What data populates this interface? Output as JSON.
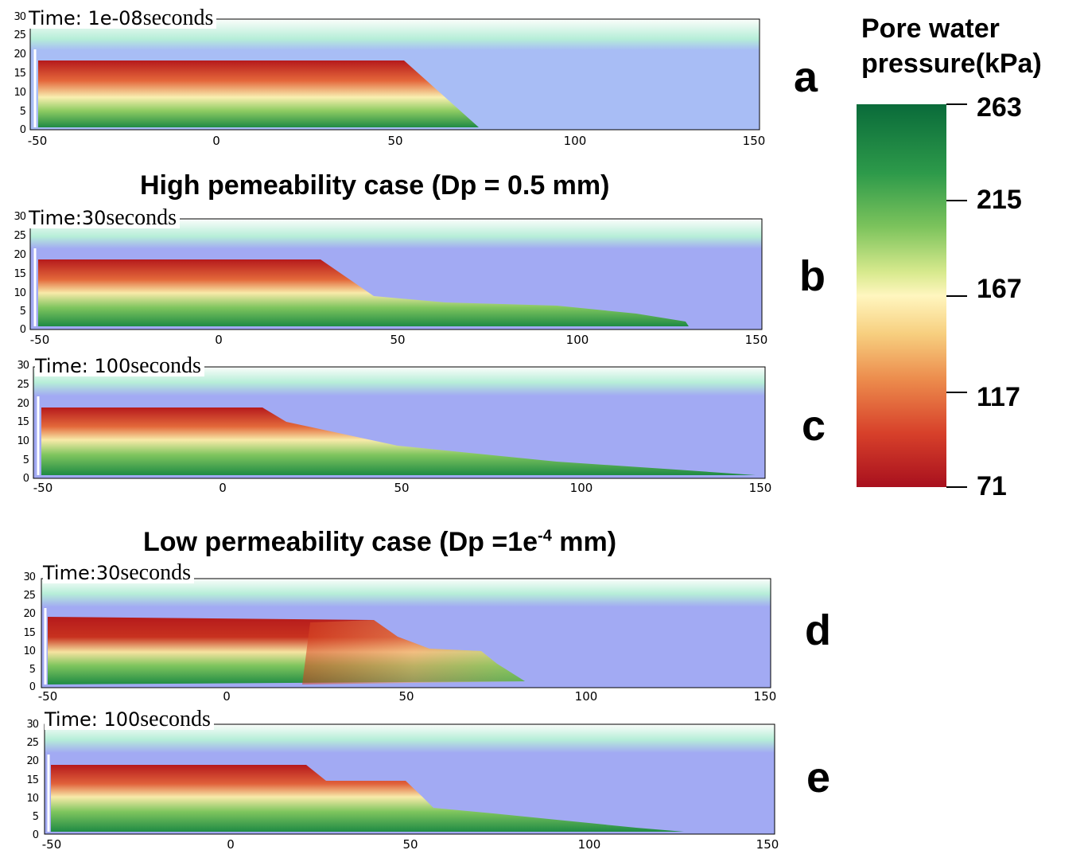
{
  "colorbar": {
    "title_line1": "Pore water",
    "title_line2": "pressure(kPa)",
    "ticks": [
      "263",
      "215",
      "167",
      "117",
      "71"
    ],
    "gradient_colors": [
      "#0a6b3a",
      "#7cc35c",
      "#fff6bf",
      "#ec8b4c",
      "#a8101e"
    ]
  },
  "case_titles": {
    "high": "High pemeability case (Dp = 0.5 mm)",
    "low_prefix": "Low permeability case (Dp =1e",
    "low_sup": "-4",
    "low_suffix": " mm)"
  },
  "axes": {
    "y_ticks": [
      "30",
      "25",
      "20",
      "15",
      "10",
      "5",
      "0"
    ],
    "x_ticks": [
      "-50",
      "0",
      "50",
      "100",
      "150"
    ]
  },
  "panels": [
    {
      "letter": "a",
      "time_prefix": "Time: 1e-08",
      "time_unit": "seconds"
    },
    {
      "letter": "b",
      "time_prefix": "Time:30",
      "time_unit": "seconds"
    },
    {
      "letter": "c",
      "time_prefix": "Time: 100",
      "time_unit": "seconds"
    },
    {
      "letter": "d",
      "time_prefix": "Time:30",
      "time_unit": "seconds"
    },
    {
      "letter": "e",
      "time_prefix": "Time: 100",
      "time_unit": "seconds"
    }
  ],
  "colors": {
    "water": "#a8bdf5",
    "water_deep": "#a2aaf3",
    "surface_band": "#b6eed8",
    "sand_top": "#b51a1c"
  }
}
